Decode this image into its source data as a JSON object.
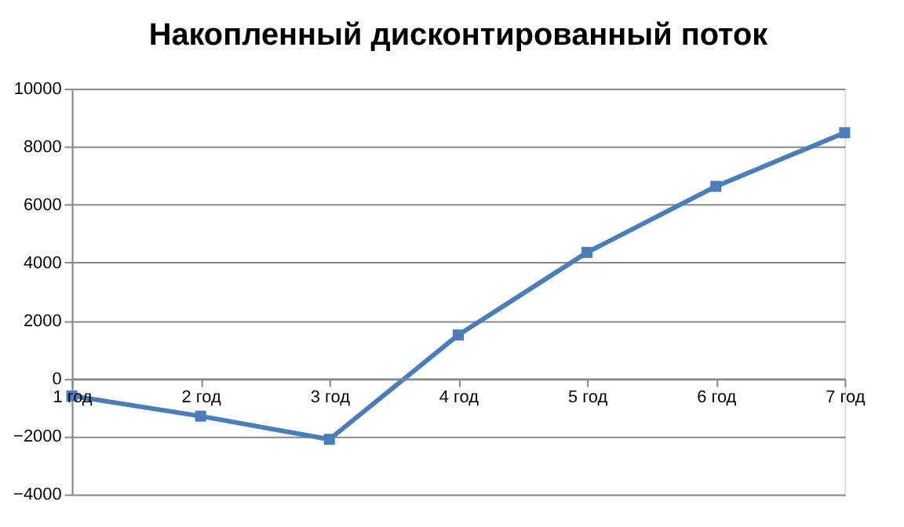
{
  "chart_data": {
    "type": "line",
    "title": "Накопленный дисконтированный поток",
    "categories": [
      "1 год",
      "2 год",
      "3 год",
      "4 год",
      "5 год",
      "6 год",
      "7 год"
    ],
    "series": [
      {
        "color": "#4a7ebb",
        "values": [
          -600,
          -1300,
          -2100,
          1500,
          4350,
          6630,
          8480
        ]
      }
    ],
    "ylim": [
      -4000,
      10000
    ],
    "yticks": [
      -4000,
      -2000,
      0,
      2000,
      4000,
      6000,
      8000,
      10000
    ],
    "grid": "y",
    "marker": "square",
    "line_style": "solid"
  }
}
